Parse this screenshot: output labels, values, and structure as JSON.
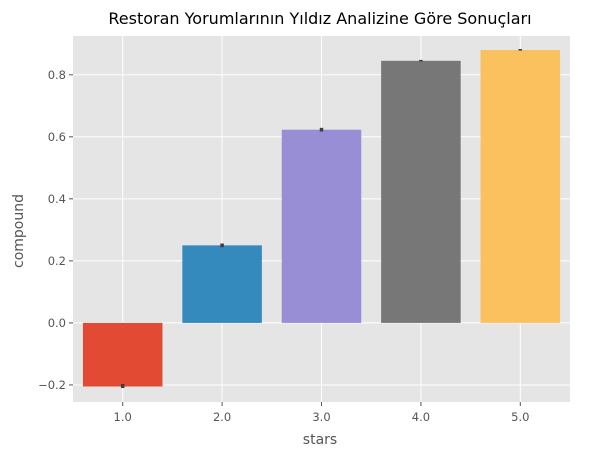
{
  "chart_data": {
    "type": "bar",
    "title": "Restoran Yorumlarının Yıldız Analizine Göre Sonuçları",
    "xlabel": "stars",
    "ylabel": "compound",
    "categories": [
      "1.0",
      "2.0",
      "3.0",
      "4.0",
      "5.0"
    ],
    "values": [
      -0.205,
      0.25,
      0.623,
      0.845,
      0.88
    ],
    "error_bars": [
      {
        "low": -0.21,
        "high": -0.197
      },
      {
        "low": 0.244,
        "high": 0.256
      },
      {
        "low": 0.617,
        "high": 0.629
      },
      {
        "low": 0.843,
        "high": 0.848
      },
      {
        "low": 0.878,
        "high": 0.883
      }
    ],
    "colors": [
      "#e24a33",
      "#348abd",
      "#988ed5",
      "#777777",
      "#fbc15e"
    ],
    "ylim": [
      -0.255,
      0.925
    ],
    "yticks": [
      -0.2,
      0.0,
      0.2,
      0.4,
      0.6,
      0.8
    ],
    "ytick_labels": [
      "−0.2",
      "0.0",
      "0.2",
      "0.4",
      "0.6",
      "0.8"
    ],
    "grid": true,
    "style": "ggplot",
    "background": "#e5e5e5"
  }
}
